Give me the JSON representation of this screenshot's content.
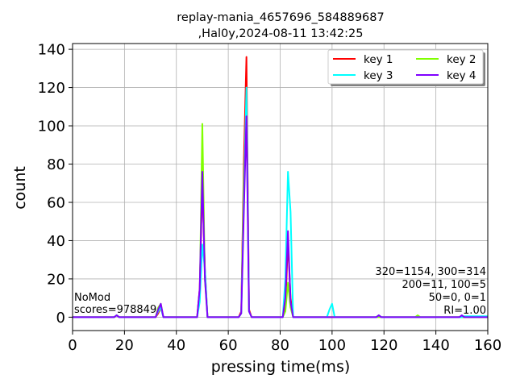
{
  "chart_data": {
    "type": "line",
    "title": [
      "replay-mania_4657696_584889687",
      ",Hal0y,2024-08-11 13:42:25"
    ],
    "xlabel": "pressing time(ms)",
    "ylabel": "count",
    "xlim": [
      0,
      160
    ],
    "ylim": [
      -7,
      143
    ],
    "xticks": [
      0,
      20,
      40,
      60,
      80,
      100,
      120,
      140,
      160
    ],
    "yticks": [
      0,
      20,
      40,
      60,
      80,
      100,
      120,
      140
    ],
    "grid": true,
    "legend": {
      "placement": "top-right",
      "columns": 2
    },
    "series": [
      {
        "name": "key 1",
        "color": "#ff0000",
        "points": [
          [
            0,
            0
          ],
          [
            16,
            0
          ],
          [
            17,
            1
          ],
          [
            18,
            0
          ],
          [
            32,
            0
          ],
          [
            33,
            2
          ],
          [
            34,
            5
          ],
          [
            35,
            0
          ],
          [
            48,
            0
          ],
          [
            49,
            15
          ],
          [
            50,
            70
          ],
          [
            51,
            25
          ],
          [
            52,
            0
          ],
          [
            64,
            0
          ],
          [
            65,
            3
          ],
          [
            66,
            80
          ],
          [
            67,
            136
          ],
          [
            68,
            4
          ],
          [
            69,
            0
          ],
          [
            81,
            0
          ],
          [
            82,
            5
          ],
          [
            83,
            40
          ],
          [
            84,
            10
          ],
          [
            85,
            0
          ],
          [
            100,
            0
          ],
          [
            117,
            0
          ],
          [
            118,
            1
          ],
          [
            119,
            0
          ],
          [
            150,
            0
          ],
          [
            160,
            0
          ]
        ]
      },
      {
        "name": "key 2",
        "color": "#80ff00",
        "points": [
          [
            0,
            0
          ],
          [
            16,
            0
          ],
          [
            17,
            1
          ],
          [
            18,
            0
          ],
          [
            32,
            0
          ],
          [
            33,
            5
          ],
          [
            34,
            7
          ],
          [
            35,
            0
          ],
          [
            48,
            0
          ],
          [
            49,
            10
          ],
          [
            50,
            101
          ],
          [
            51,
            20
          ],
          [
            52,
            0
          ],
          [
            64,
            0
          ],
          [
            65,
            2
          ],
          [
            66,
            70
          ],
          [
            67,
            110
          ],
          [
            68,
            3
          ],
          [
            69,
            0
          ],
          [
            81,
            0
          ],
          [
            82,
            3
          ],
          [
            83,
            18
          ],
          [
            84,
            5
          ],
          [
            85,
            0
          ],
          [
            132,
            0
          ],
          [
            133,
            1
          ],
          [
            134,
            0
          ],
          [
            160,
            0
          ]
        ]
      },
      {
        "name": "key 3",
        "color": "#00ffff",
        "points": [
          [
            0,
            0
          ],
          [
            16,
            0
          ],
          [
            17,
            1
          ],
          [
            18,
            0
          ],
          [
            32,
            0
          ],
          [
            33,
            3
          ],
          [
            34,
            5
          ],
          [
            35,
            0
          ],
          [
            48,
            0
          ],
          [
            49,
            8
          ],
          [
            50,
            38
          ],
          [
            51,
            25
          ],
          [
            52,
            0
          ],
          [
            64,
            0
          ],
          [
            65,
            2
          ],
          [
            66,
            60
          ],
          [
            67,
            120
          ],
          [
            68,
            3
          ],
          [
            69,
            0
          ],
          [
            81,
            0
          ],
          [
            82,
            20
          ],
          [
            83,
            76
          ],
          [
            84,
            55
          ],
          [
            85,
            0
          ],
          [
            98,
            0
          ],
          [
            99,
            4
          ],
          [
            100,
            7
          ],
          [
            101,
            0
          ],
          [
            117,
            0
          ],
          [
            118,
            1
          ],
          [
            119,
            0
          ],
          [
            150,
            0
          ],
          [
            151,
            0.5
          ],
          [
            160,
            0.5
          ]
        ]
      },
      {
        "name": "key 4",
        "color": "#8000ff",
        "points": [
          [
            0,
            0
          ],
          [
            16,
            0
          ],
          [
            17,
            1
          ],
          [
            18,
            0
          ],
          [
            32,
            0
          ],
          [
            33,
            4
          ],
          [
            34,
            7
          ],
          [
            35,
            0
          ],
          [
            48,
            0
          ],
          [
            49,
            15
          ],
          [
            50,
            76
          ],
          [
            51,
            20
          ],
          [
            52,
            0
          ],
          [
            64,
            0
          ],
          [
            65,
            2
          ],
          [
            66,
            55
          ],
          [
            67,
            105
          ],
          [
            68,
            3
          ],
          [
            69,
            0
          ],
          [
            81,
            0
          ],
          [
            82,
            10
          ],
          [
            83,
            45
          ],
          [
            84,
            8
          ],
          [
            85,
            0
          ],
          [
            117,
            0
          ],
          [
            118,
            1
          ],
          [
            119,
            0
          ],
          [
            149,
            0
          ],
          [
            150,
            1
          ],
          [
            151,
            0
          ],
          [
            160,
            0
          ]
        ]
      }
    ],
    "annotations": {
      "left": [
        "NoMod",
        "scores=978849"
      ],
      "right": [
        "320=1154, 300=314",
        "200=11, 100=5",
        "50=0, 0=1",
        "RI=1.00"
      ]
    }
  }
}
